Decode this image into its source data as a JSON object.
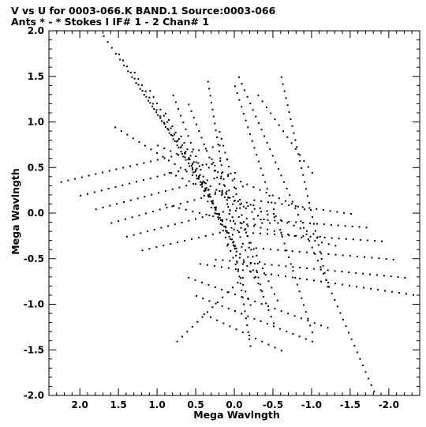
{
  "chart_data": {
    "type": "scatter",
    "title": "V vs U for 0003-066.K BAND.1   Source:0003-066",
    "subtitle": "Ants * - *    Stokes I  IF# 1 - 2  Chan# 1",
    "xlabel": "Mega Wavlngth",
    "ylabel": "Mega Wavlngth",
    "xlim": [
      2.4,
      -2.4
    ],
    "ylim": [
      -2.0,
      2.0
    ],
    "x_axis_reversed": true,
    "x_ticks": [
      2.0,
      1.5,
      1.0,
      0.5,
      0.0,
      -0.5,
      -1.0,
      -1.5,
      -2.0
    ],
    "x_tick_labels": [
      "2.0",
      "1.5",
      "1.0",
      "0.5",
      "0.0",
      "-0.5",
      "-1.0",
      "-1.5",
      "-2.0"
    ],
    "y_ticks": [
      2.0,
      1.5,
      1.0,
      0.5,
      0.0,
      -0.5,
      -1.0,
      -1.5,
      -2.0
    ],
    "y_tick_labels": [
      "2.0",
      "1.5",
      "1.0",
      "0.5",
      "0.0",
      "-0.5",
      "-1.0",
      "-1.5",
      "-2.0"
    ],
    "grid": false,
    "legend": "none",
    "marker_color": "#000000",
    "tracks": [
      {
        "from": [
          1.7,
          1.95
        ],
        "to": [
          0.6,
          0.6
        ]
      },
      {
        "from": [
          1.5,
          1.75
        ],
        "to": [
          0.5,
          0.42
        ]
      },
      {
        "from": [
          1.3,
          1.55
        ],
        "to": [
          0.4,
          0.25
        ]
      },
      {
        "from": [
          1.1,
          1.35
        ],
        "to": [
          0.25,
          0.05
        ]
      },
      {
        "from": [
          0.9,
          1.1
        ],
        "to": [
          0.12,
          -0.15
        ]
      },
      {
        "from": [
          0.7,
          0.85
        ],
        "to": [
          0.0,
          -0.35
        ]
      },
      {
        "from": [
          0.55,
          0.55
        ],
        "to": [
          -0.1,
          -0.55
        ]
      },
      {
        "from": [
          0.4,
          0.2
        ],
        "to": [
          -0.25,
          -0.7
        ]
      },
      {
        "from": [
          2.25,
          0.35
        ],
        "to": [
          0.2,
          0.75
        ]
      },
      {
        "from": [
          2.0,
          0.2
        ],
        "to": [
          0.1,
          0.6
        ]
      },
      {
        "from": [
          1.8,
          0.05
        ],
        "to": [
          0.0,
          0.45
        ]
      },
      {
        "from": [
          1.6,
          -0.1
        ],
        "to": [
          -0.1,
          0.3
        ]
      },
      {
        "from": [
          1.4,
          -0.25
        ],
        "to": [
          -0.2,
          0.1
        ]
      },
      {
        "from": [
          1.2,
          -0.4
        ],
        "to": [
          -0.35,
          -0.1
        ]
      },
      {
        "from": [
          -0.25,
          0.15
        ],
        "to": [
          -1.5,
          0.0
        ]
      },
      {
        "from": [
          -0.15,
          -0.05
        ],
        "to": [
          -1.7,
          -0.15
        ]
      },
      {
        "from": [
          -0.05,
          -0.2
        ],
        "to": [
          -1.9,
          -0.3
        ]
      },
      {
        "from": [
          0.1,
          -0.35
        ],
        "to": [
          -2.05,
          -0.5
        ]
      },
      {
        "from": [
          0.25,
          -0.5
        ],
        "to": [
          -2.2,
          -0.7
        ]
      },
      {
        "from": [
          0.45,
          -0.55
        ],
        "to": [
          -2.4,
          -0.9
        ]
      },
      {
        "from": [
          0.6,
          -0.7
        ],
        "to": [
          -1.2,
          -1.25
        ]
      },
      {
        "from": [
          0.5,
          -0.9
        ],
        "to": [
          -1.0,
          -1.4
        ]
      },
      {
        "from": [
          0.4,
          -1.1
        ],
        "to": [
          -0.6,
          -1.5
        ]
      },
      {
        "from": [
          -0.05,
          1.5
        ],
        "to": [
          -1.8,
          -1.95
        ]
      },
      {
        "from": [
          -0.6,
          1.5
        ],
        "to": [
          -1.2,
          -0.8
        ]
      },
      {
        "from": [
          0.8,
          1.3
        ],
        "to": [
          -0.2,
          -1.0
        ]
      },
      {
        "from": [
          0.6,
          1.2
        ],
        "to": [
          -0.5,
          -1.2
        ]
      },
      {
        "from": [
          0.0,
          1.4
        ],
        "to": [
          -1.0,
          -1.3
        ]
      },
      {
        "from": [
          0.35,
          1.45
        ],
        "to": [
          -0.2,
          -1.45
        ]
      },
      {
        "from": [
          0.2,
          0.9
        ],
        "to": [
          -0.35,
          -0.85
        ]
      },
      {
        "from": [
          0.3,
          0.6
        ],
        "to": [
          -0.55,
          -0.95
        ]
      },
      {
        "from": [
          0.85,
          0.45
        ],
        "to": [
          -1.1,
          -0.25
        ]
      },
      {
        "from": [
          0.9,
          0.1
        ],
        "to": [
          -1.3,
          -0.35
        ]
      },
      {
        "from": [
          1.0,
          0.75
        ],
        "to": [
          -0.9,
          0.05
        ]
      },
      {
        "from": [
          1.55,
          0.95
        ],
        "to": [
          -0.45,
          -0.1
        ]
      },
      {
        "from": [
          0.75,
          -1.4
        ],
        "to": [
          -0.1,
          -0.7
        ]
      },
      {
        "from": [
          0.2,
          0.25
        ],
        "to": [
          -0.5,
          0.0
        ]
      },
      {
        "from": [
          -0.3,
          1.3
        ],
        "to": [
          -1.0,
          0.45
        ]
      }
    ]
  }
}
